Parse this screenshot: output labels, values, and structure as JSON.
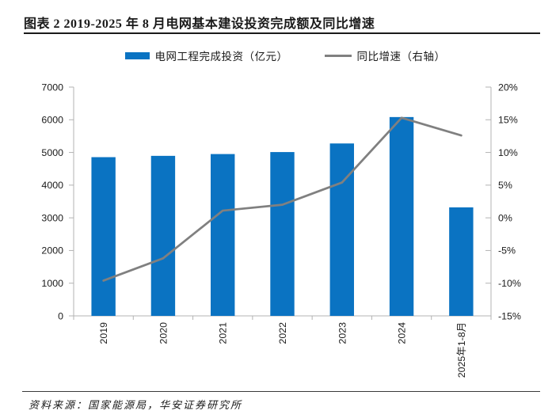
{
  "title": "图表 2 2019-2025 年 8 月电网基本建设投资完成额及同比增速",
  "source": "资料来源：国家能源局，华安证券研究所",
  "colors": {
    "bar": "#0a73c2",
    "line": "#808080",
    "axis": "#b3b3b3",
    "text": "#1a1a1a"
  },
  "chart_data": {
    "type": "bar",
    "title": "2019-2025年8月电网基本建设投资完成额及同比增速",
    "categories": [
      "2019",
      "2020",
      "2021",
      "2022",
      "2023",
      "2024",
      "2025年1-8月"
    ],
    "series": [
      {
        "name": "电网工程完成投资（亿元）",
        "type": "bar",
        "axis": "left",
        "values": [
          4856,
          4896,
          4951,
          5012,
          5275,
          6083,
          3320
        ]
      },
      {
        "name": "同比增速（右轴）",
        "type": "line",
        "axis": "right",
        "values": [
          -9.6,
          -6.2,
          1.1,
          2.0,
          5.4,
          15.3,
          12.6
        ]
      }
    ],
    "left_axis": {
      "min": 0,
      "max": 7000,
      "step": 1000
    },
    "right_axis": {
      "min": -15,
      "max": 20,
      "step": 5,
      "format": "percent"
    },
    "grid": false,
    "legend_position": "top"
  }
}
